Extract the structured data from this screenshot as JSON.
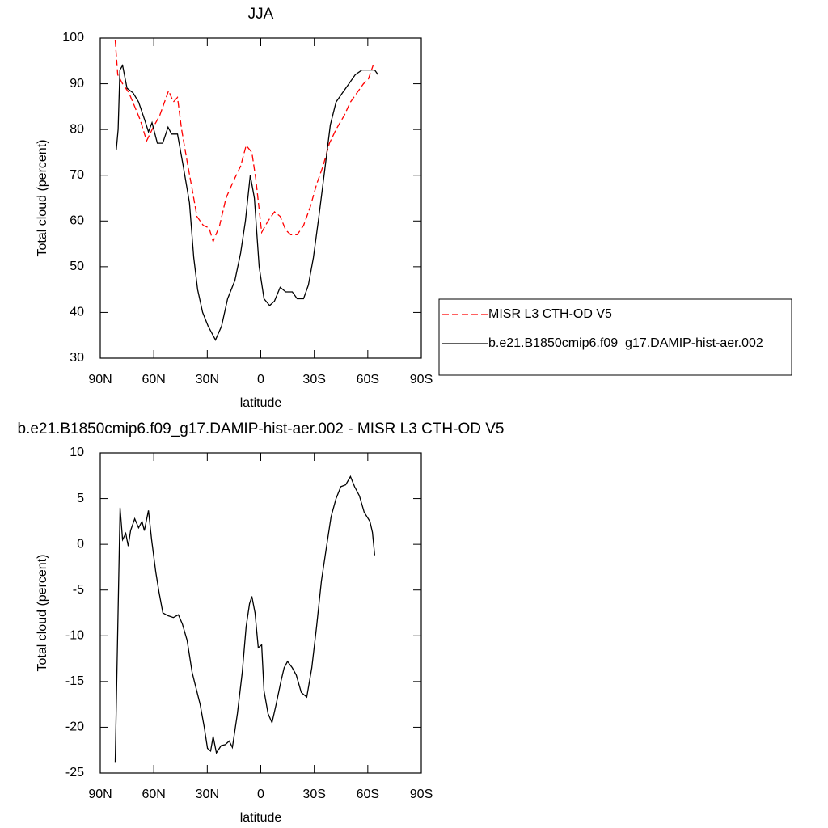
{
  "chart_data": [
    {
      "type": "line",
      "title": "JJA",
      "xlabel": "latitude",
      "ylabel": "Total cloud (percent)",
      "xlim": [
        90,
        -90
      ],
      "ylim": [
        30,
        100
      ],
      "xticks": [
        {
          "value": 90,
          "label": "90N"
        },
        {
          "value": 60,
          "label": "60N"
        },
        {
          "value": 30,
          "label": "30N"
        },
        0,
        {
          "value": -30,
          "label": "30S"
        },
        {
          "value": -60,
          "label": "60S"
        },
        {
          "value": -90,
          "label": "90S"
        }
      ],
      "yticks": [
        30,
        40,
        50,
        60,
        70,
        80,
        90,
        100
      ],
      "legend": "right",
      "series": [
        {
          "name": "MISR L3 CTH-OD V5",
          "color": "#ff0000",
          "line_style": "dashed",
          "x": [
            81.6,
            80.2,
            77.5,
            73.9,
            70.7,
            67.5,
            64,
            60.3,
            56.7,
            51.7,
            49,
            46.7,
            44.4,
            41.3,
            38.5,
            35.8,
            32.2,
            29,
            26.7,
            23.1,
            19.5,
            15,
            11.3,
            8.2,
            5,
            2.7,
            -0.5,
            -4.1,
            -7.7,
            -10.9,
            -14,
            -16.8,
            -20.4,
            -24,
            -27.7,
            -31.3,
            -34.9,
            -38.5,
            -42.2,
            -46.7,
            -50.3,
            -53.9,
            -57.6,
            -60.3,
            -63
          ],
          "values": [
            99.5,
            92,
            90,
            88,
            85,
            82,
            77.5,
            80.5,
            83,
            88.5,
            86,
            87,
            80,
            73,
            67,
            61,
            59,
            58.5,
            55.5,
            59,
            65,
            69,
            72,
            76.5,
            75,
            69,
            57.5,
            60,
            62,
            61,
            58,
            57,
            57,
            59,
            63,
            68,
            72,
            77,
            80,
            83,
            86,
            88,
            90,
            91,
            94
          ]
        },
        {
          "name": "b.e21.B1850cmip6.f09_g17.DAMIP-hist-aer.002",
          "color": "#000000",
          "line_style": "solid",
          "x": [
            81,
            80,
            79,
            77.5,
            75,
            71.6,
            68.5,
            65,
            63,
            61,
            58,
            55,
            52,
            50,
            46.7,
            43.5,
            40,
            37.6,
            35.4,
            32.6,
            29.5,
            25.4,
            22,
            18.6,
            14.5,
            11.3,
            8.6,
            5.9,
            3.6,
            0.9,
            -1.8,
            -5,
            -7.7,
            -10.9,
            -14,
            -17.7,
            -20.4,
            -24,
            -26.7,
            -29.5,
            -32.6,
            -35.8,
            -39,
            -42.2,
            -45.8,
            -49.4,
            -53,
            -56.7,
            -61.2,
            -63.9,
            -65.7
          ],
          "values": [
            75.5,
            80,
            93,
            94,
            89,
            88,
            86,
            82,
            79.5,
            81.5,
            77,
            77,
            80.5,
            79,
            79,
            72,
            64,
            52,
            45,
            40,
            37,
            34,
            37,
            43,
            47,
            53,
            60,
            70,
            65,
            50,
            43,
            41.5,
            42.5,
            45.5,
            44.5,
            44.5,
            43,
            43,
            46,
            52,
            61,
            71,
            81,
            86,
            88,
            90,
            92,
            93,
            93,
            93,
            92
          ]
        }
      ]
    },
    {
      "type": "line",
      "title": "b.e21.B1850cmip6.f09_g17.DAMIP-hist-aer.002 - MISR L3 CTH-OD V5",
      "xlabel": "latitude",
      "ylabel": "Total cloud (percent)",
      "xlim": [
        90,
        -90
      ],
      "ylim": [
        -25,
        10
      ],
      "xticks": [
        {
          "value": 90,
          "label": "90N"
        },
        {
          "value": 60,
          "label": "60N"
        },
        {
          "value": 30,
          "label": "30N"
        },
        0,
        {
          "value": -30,
          "label": "30S"
        },
        {
          "value": -60,
          "label": "60S"
        },
        {
          "value": -90,
          "label": "90S"
        }
      ],
      "yticks": [
        -25,
        -20,
        -15,
        -10,
        -5,
        0,
        5,
        10
      ],
      "series": [
        {
          "color": "#000000",
          "line_style": "solid",
          "x": [
            81.6,
            78.9,
            77.5,
            75.7,
            74.3,
            73,
            70.7,
            68.5,
            66.6,
            65.3,
            63,
            61.2,
            58.9,
            57.1,
            54.9,
            52.1,
            49,
            46.2,
            44,
            41.3,
            38.5,
            36.3,
            34,
            31.7,
            29.9,
            28.1,
            26.7,
            24.9,
            22.2,
            19.9,
            17.7,
            15.9,
            13.1,
            10.4,
            8.2,
            6.3,
            5,
            3.2,
            1.4,
            -0.5,
            -1.8,
            -4.1,
            -6.3,
            -8.6,
            -11.3,
            -13.1,
            -15,
            -17.7,
            -19.9,
            -22.7,
            -25.8,
            -28.6,
            -31.3,
            -34,
            -36.7,
            -39.4,
            -42.2,
            -44.9,
            -47.6,
            -50.3,
            -52.6,
            -55.3,
            -58,
            -61.2,
            -62.6,
            -63.9
          ],
          "values": [
            -23.8,
            4,
            0.5,
            1.2,
            -0.2,
            1.5,
            2.8,
            1.8,
            2.5,
            1.5,
            3.7,
            0.5,
            -3,
            -5.2,
            -7.5,
            -7.8,
            -8,
            -7.7,
            -8.7,
            -10.5,
            -14,
            -15.7,
            -17.5,
            -20,
            -22.3,
            -22.6,
            -21,
            -22.8,
            -22,
            -21.9,
            -21.5,
            -22.2,
            -18.5,
            -14,
            -9,
            -6.5,
            -5.7,
            -7.5,
            -11.3,
            -11,
            -16,
            -18.5,
            -19.5,
            -17.5,
            -15,
            -13.5,
            -12.8,
            -13.5,
            -14.3,
            -16.2,
            -16.7,
            -13.5,
            -9,
            -4,
            -0.5,
            3,
            5,
            6.3,
            6.5,
            7.4,
            6.3,
            5.3,
            3.5,
            2.5,
            1.3,
            -1.2
          ]
        }
      ]
    }
  ]
}
